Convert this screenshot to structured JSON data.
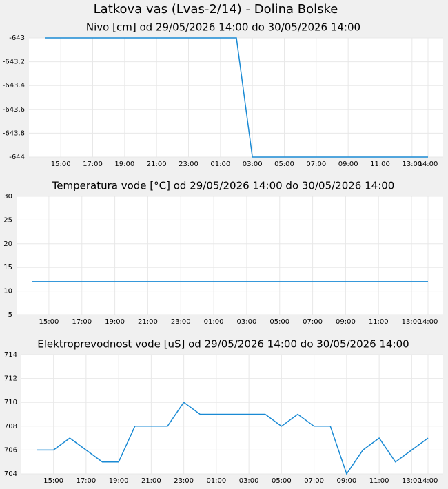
{
  "title": "Latkova vas (Lvas-2/14) - Dolina Bolske",
  "chart_data": [
    {
      "type": "line",
      "title": "Nivo [cm] od 29/05/2026 14:00 do 30/05/2026 14:00",
      "categories": [
        null,
        "15:00",
        null,
        "17:00",
        null,
        "19:00",
        null,
        "21:00",
        null,
        "23:00",
        null,
        "01:00",
        null,
        "03:00",
        null,
        "05:00",
        null,
        "07:00",
        null,
        "09:00",
        null,
        "11:00",
        null,
        "13:00",
        "14:00"
      ],
      "values": [
        -643,
        -643,
        -643,
        -643,
        -643,
        -643,
        -643,
        -643,
        -643,
        -643,
        -643,
        -643,
        -643,
        -644,
        -644,
        -644,
        -644,
        -644,
        -644,
        -644,
        -644,
        -644,
        -644,
        -644,
        -644
      ],
      "color": "#1a8ad4",
      "ylim": [
        -644,
        -643
      ],
      "yticks": [
        -644,
        -643.8,
        -643.6,
        -643.4,
        -643.2,
        -643
      ],
      "grid": true
    },
    {
      "type": "line",
      "title": "Temperatura vode [°C] od 29/05/2026 14:00 do 30/05/2026 14:00",
      "categories": [
        null,
        "15:00",
        null,
        "17:00",
        null,
        "19:00",
        null,
        "21:00",
        null,
        "23:00",
        null,
        "01:00",
        null,
        "03:00",
        null,
        "05:00",
        null,
        "07:00",
        null,
        "09:00",
        null,
        "11:00",
        null,
        "13:00",
        "14:00"
      ],
      "values": [
        12,
        12,
        12,
        12,
        12,
        12,
        12,
        12,
        12,
        12,
        12,
        12,
        12,
        12,
        12,
        12,
        12,
        12,
        12,
        12,
        12,
        12,
        12,
        12,
        12
      ],
      "color": "#1a8ad4",
      "ylim": [
        5,
        30
      ],
      "yticks": [
        5,
        10,
        15,
        20,
        25,
        30
      ],
      "grid": true
    },
    {
      "type": "line",
      "title": "Elektroprevodnost vode [uS] od 29/05/2026 14:00 do 30/05/2026 14:00",
      "categories": [
        null,
        "15:00",
        null,
        "17:00",
        null,
        "19:00",
        null,
        "21:00",
        null,
        "23:00",
        null,
        "01:00",
        null,
        "03:00",
        null,
        "05:00",
        null,
        "07:00",
        null,
        "09:00",
        null,
        "11:00",
        null,
        "13:00",
        "14:00"
      ],
      "values": [
        706,
        706,
        707,
        706,
        705,
        705,
        708,
        708,
        708,
        710,
        709,
        709,
        709,
        709,
        709,
        708,
        709,
        708,
        708,
        704,
        706,
        707,
        705,
        706,
        707
      ],
      "color": "#1a8ad4",
      "ylim": [
        704,
        714
      ],
      "yticks": [
        704,
        706,
        708,
        710,
        712,
        714
      ],
      "grid": true
    }
  ]
}
